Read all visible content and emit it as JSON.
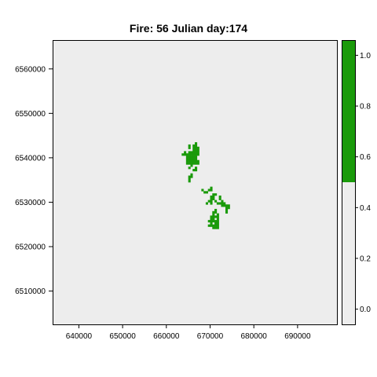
{
  "chart_data": {
    "type": "heatmap",
    "title": "Fire: 56   Julian day:174",
    "xlabel": "",
    "ylabel": "",
    "xlim": [
      634000,
      699000
    ],
    "ylim": [
      6502500,
      6566500
    ],
    "x_ticks": [
      640000,
      650000,
      660000,
      670000,
      680000,
      690000
    ],
    "x_tick_labels": [
      "640000",
      "650000",
      "660000",
      "670000",
      "680000",
      "690000"
    ],
    "y_ticks": [
      6510000,
      6520000,
      6530000,
      6540000,
      6550000,
      6560000
    ],
    "y_tick_labels": [
      "6510000",
      "6520000",
      "6530000",
      "6540000",
      "6550000",
      "6560000"
    ],
    "grid": false,
    "background_color": "#ededed",
    "burned_color": "#1a9a0a",
    "cell_size": 500,
    "burned_cells": [
      [
        666750,
        6543250
      ],
      [
        665250,
        6542750
      ],
      [
        666250,
        6542750
      ],
      [
        666750,
        6542750
      ],
      [
        665250,
        6542250
      ],
      [
        666250,
        6542250
      ],
      [
        666750,
        6542250
      ],
      [
        667250,
        6542250
      ],
      [
        666250,
        6541750
      ],
      [
        666750,
        6541750
      ],
      [
        667250,
        6541750
      ],
      [
        664250,
        6541250
      ],
      [
        665250,
        6541250
      ],
      [
        665750,
        6541250
      ],
      [
        666250,
        6541250
      ],
      [
        666750,
        6541250
      ],
      [
        667250,
        6541250
      ],
      [
        663750,
        6540750
      ],
      [
        664250,
        6540750
      ],
      [
        664750,
        6540750
      ],
      [
        665250,
        6540750
      ],
      [
        665750,
        6540750
      ],
      [
        666250,
        6540750
      ],
      [
        666750,
        6540750
      ],
      [
        667250,
        6540750
      ],
      [
        664750,
        6540250
      ],
      [
        665250,
        6540250
      ],
      [
        665750,
        6540250
      ],
      [
        666250,
        6540250
      ],
      [
        666750,
        6540250
      ],
      [
        664750,
        6539750
      ],
      [
        665250,
        6539750
      ],
      [
        665750,
        6539750
      ],
      [
        666250,
        6539750
      ],
      [
        666750,
        6539750
      ],
      [
        664750,
        6539250
      ],
      [
        665250,
        6539250
      ],
      [
        665750,
        6539250
      ],
      [
        666250,
        6539250
      ],
      [
        666750,
        6539250
      ],
      [
        667250,
        6539250
      ],
      [
        664750,
        6538750
      ],
      [
        665250,
        6538750
      ],
      [
        665750,
        6538750
      ],
      [
        666250,
        6538750
      ],
      [
        666750,
        6538750
      ],
      [
        667250,
        6538750
      ],
      [
        665750,
        6538250
      ],
      [
        665250,
        6537750
      ],
      [
        666750,
        6537750
      ],
      [
        666250,
        6537250
      ],
      [
        666750,
        6537250
      ],
      [
        665750,
        6536250
      ],
      [
        665250,
        6535750
      ],
      [
        665750,
        6535750
      ],
      [
        665250,
        6535250
      ],
      [
        665250,
        6534750
      ],
      [
        670250,
        6533250
      ],
      [
        668250,
        6532750
      ],
      [
        669750,
        6532750
      ],
      [
        670250,
        6532750
      ],
      [
        668750,
        6532250
      ],
      [
        669250,
        6532250
      ],
      [
        670750,
        6531750
      ],
      [
        671250,
        6531750
      ],
      [
        670250,
        6531250
      ],
      [
        670750,
        6531250
      ],
      [
        672250,
        6531250
      ],
      [
        670250,
        6530750
      ],
      [
        670750,
        6530750
      ],
      [
        672250,
        6530750
      ],
      [
        669750,
        6530250
      ],
      [
        670250,
        6530250
      ],
      [
        671250,
        6530250
      ],
      [
        672750,
        6530250
      ],
      [
        669250,
        6529750
      ],
      [
        670250,
        6529750
      ],
      [
        671750,
        6529750
      ],
      [
        672250,
        6529750
      ],
      [
        672750,
        6529750
      ],
      [
        673250,
        6529750
      ],
      [
        672750,
        6529250
      ],
      [
        673250,
        6529250
      ],
      [
        673750,
        6529250
      ],
      [
        674250,
        6529250
      ],
      [
        673750,
        6528750
      ],
      [
        674250,
        6528750
      ],
      [
        671250,
        6528250
      ],
      [
        673750,
        6528250
      ],
      [
        670750,
        6527750
      ],
      [
        671250,
        6527750
      ],
      [
        673750,
        6527750
      ],
      [
        670750,
        6527250
      ],
      [
        671750,
        6527250
      ],
      [
        670250,
        6526750
      ],
      [
        670750,
        6526750
      ],
      [
        671250,
        6526750
      ],
      [
        671750,
        6526750
      ],
      [
        670250,
        6526250
      ],
      [
        670750,
        6526250
      ],
      [
        671750,
        6526250
      ],
      [
        669750,
        6525750
      ],
      [
        670250,
        6525750
      ],
      [
        670750,
        6525750
      ],
      [
        671250,
        6525750
      ],
      [
        671750,
        6525750
      ],
      [
        670250,
        6525250
      ],
      [
        671250,
        6525250
      ],
      [
        671750,
        6525250
      ],
      [
        669750,
        6524750
      ],
      [
        670250,
        6524750
      ],
      [
        670750,
        6524750
      ],
      [
        671250,
        6524750
      ],
      [
        671750,
        6524750
      ],
      [
        670750,
        6524250
      ],
      [
        671250,
        6524250
      ],
      [
        671750,
        6524250
      ]
    ],
    "colorbar": {
      "range": [
        -0.06,
        1.06
      ],
      "ticks": [
        0.0,
        0.2,
        0.4,
        0.6,
        0.8,
        1.0
      ],
      "tick_labels": [
        "0.0",
        "0.2",
        "0.4",
        "0.6",
        "0.8",
        "1.0"
      ],
      "segments": [
        {
          "from": -0.06,
          "to": 0.5,
          "color": "#ededed"
        },
        {
          "from": 0.5,
          "to": 1.06,
          "color": "#1a9a0a"
        }
      ]
    }
  }
}
